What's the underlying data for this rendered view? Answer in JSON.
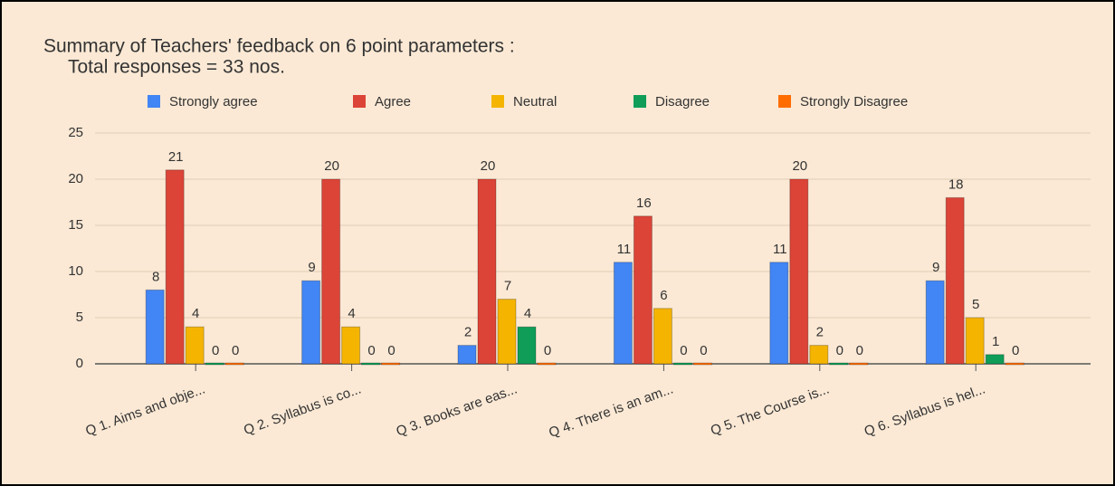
{
  "chart_data": {
    "type": "bar",
    "title": "Summary of Teachers' feedback on 6 point parameters :",
    "subtitle": "Total responses = 33 nos.",
    "categories": [
      "Q 1. Aims and obje...",
      "Q 2. Syllabus is co...",
      "Q 3. Books are eas...",
      "Q 4. There is an am...",
      "Q 5. The Course is...",
      "Q 6. Syllabus is hel..."
    ],
    "series": [
      {
        "name": "Strongly agree",
        "color": "#4285f4",
        "values": [
          8,
          9,
          2,
          11,
          11,
          9
        ]
      },
      {
        "name": "Agree",
        "color": "#db4437",
        "values": [
          21,
          20,
          20,
          16,
          20,
          18
        ]
      },
      {
        "name": "Neutral",
        "color": "#f4b400",
        "values": [
          4,
          4,
          7,
          6,
          2,
          5
        ]
      },
      {
        "name": "Disagree",
        "color": "#0f9d58",
        "values": [
          0,
          0,
          4,
          0,
          0,
          1
        ]
      },
      {
        "name": "Strongly Disagree",
        "color": "#ff6d01",
        "values": [
          0,
          0,
          0,
          0,
          0,
          0
        ]
      }
    ],
    "ylim": [
      0,
      25
    ],
    "yticks": [
      0,
      5,
      10,
      15,
      20,
      25
    ],
    "grid": true,
    "legend": "top"
  }
}
